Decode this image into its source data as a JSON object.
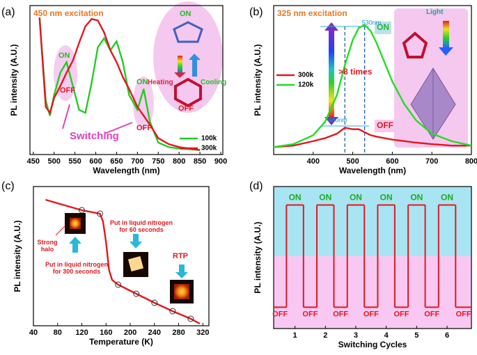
{
  "chart_data": [
    {
      "type": "line",
      "panel": "(a)",
      "title": "450 nm excitation",
      "x_label": "Wavelength (nm)",
      "y_label": "PL intensity (A.U.)",
      "x": [
        465,
        480,
        490,
        500,
        515,
        530,
        545,
        560,
        575,
        590,
        605,
        620,
        635,
        650,
        665,
        680,
        700,
        715,
        730,
        750,
        775,
        800,
        850
      ],
      "series": [
        {
          "name": "100k",
          "color": "#22cc22",
          "values": [
            92,
            36,
            26,
            40,
            55,
            62,
            46,
            30,
            28,
            48,
            72,
            78,
            70,
            76,
            62,
            40,
            30,
            44,
            22,
            8,
            5,
            4,
            3
          ]
        },
        {
          "name": "300k",
          "color": "#e0191e",
          "values": [
            92,
            32,
            28,
            38,
            46,
            55,
            63,
            75,
            86,
            91,
            90,
            82,
            70,
            62,
            52,
            44,
            32,
            26,
            20,
            11,
            7,
            5,
            3
          ]
        }
      ],
      "xlim": [
        442,
        905
      ],
      "xticks": [
        450,
        500,
        550,
        600,
        650,
        700,
        750,
        800,
        850,
        900
      ],
      "ylim": [
        0,
        100
      ],
      "legend": "lower right",
      "annotations": [
        "ON",
        "OFF",
        "ON",
        "OFF",
        "Switching",
        "ON",
        "Heating",
        "Cooling",
        "OFF"
      ]
    },
    {
      "type": "line",
      "panel": "(b)",
      "title": "325 nm excitation",
      "x_label": "Wavelength (nm)",
      "y_label": "PL intensity (A.U.)",
      "x": [
        300,
        350,
        400,
        430,
        460,
        480,
        500,
        515,
        530,
        545,
        560,
        580,
        600,
        630,
        660,
        700,
        750,
        800
      ],
      "series": [
        {
          "name": "300k",
          "color": "#e0191e",
          "values": [
            5,
            6,
            9,
            11,
            14,
            18,
            17,
            17,
            15,
            13,
            12,
            11,
            10,
            9,
            8,
            7,
            6,
            6
          ]
        },
        {
          "name": "120k",
          "color": "#22dd22",
          "values": [
            5,
            7,
            13,
            22,
            40,
            60,
            77,
            85,
            87,
            83,
            75,
            62,
            49,
            34,
            23,
            14,
            9,
            6
          ]
        }
      ],
      "xlim": [
        300,
        800
      ],
      "xticks": [
        400,
        500,
        600,
        700,
        800
      ],
      "ylim": [
        0,
        100
      ],
      "legend": "center left",
      "vlines": [
        {
          "value": 480,
          "label": "480nm"
        },
        {
          "value": 530,
          "label": "530nm"
        }
      ],
      "annotations": [
        "ON",
        "OFF",
        ">8 times",
        "Light"
      ]
    },
    {
      "type": "line",
      "panel": "(c)",
      "x_label": "Temperature (K)",
      "y_label": "PL intensity (A.U.)",
      "x": [
        60,
        120,
        150,
        155,
        160,
        165,
        170,
        180,
        210,
        240,
        270,
        300,
        315
      ],
      "series": [
        {
          "color": "#e0191e",
          "values": [
            90.5,
            83,
            80.5,
            75,
            60,
            40,
            33,
            29.5,
            23,
            16.5,
            10.5,
            5,
            1.5
          ]
        }
      ],
      "points": {
        "x": [
          120,
          150,
          180,
          210,
          240,
          270,
          300
        ],
        "values": [
          83,
          80.5,
          29.5,
          23,
          16.5,
          10.5,
          5
        ]
      },
      "xlim": [
        40,
        330
      ],
      "xticks": [
        40,
        80,
        120,
        160,
        200,
        240,
        280,
        320
      ],
      "ylim": [
        0,
        100
      ],
      "annotations": [
        "Strong halo",
        "Put in liquid nitrogen for 300 seconds",
        "Put in liquid nitrogen for 60 seconds",
        "RTP"
      ]
    },
    {
      "type": "step",
      "panel": "(d)",
      "x_label": "Switching Cycles",
      "y_label": "PL intensity (A.U.)",
      "on_label": "ON",
      "off_label": "OFF",
      "on": [
        87,
        87,
        87,
        87,
        87,
        87
      ],
      "off": [
        15,
        15,
        15,
        15,
        15,
        15,
        15
      ],
      "xlim": [
        0.3,
        6.8
      ],
      "xticks": [
        1,
        2,
        3,
        4,
        5,
        6
      ],
      "ylim": [
        0,
        100
      ],
      "color": "#e0191e"
    }
  ]
}
